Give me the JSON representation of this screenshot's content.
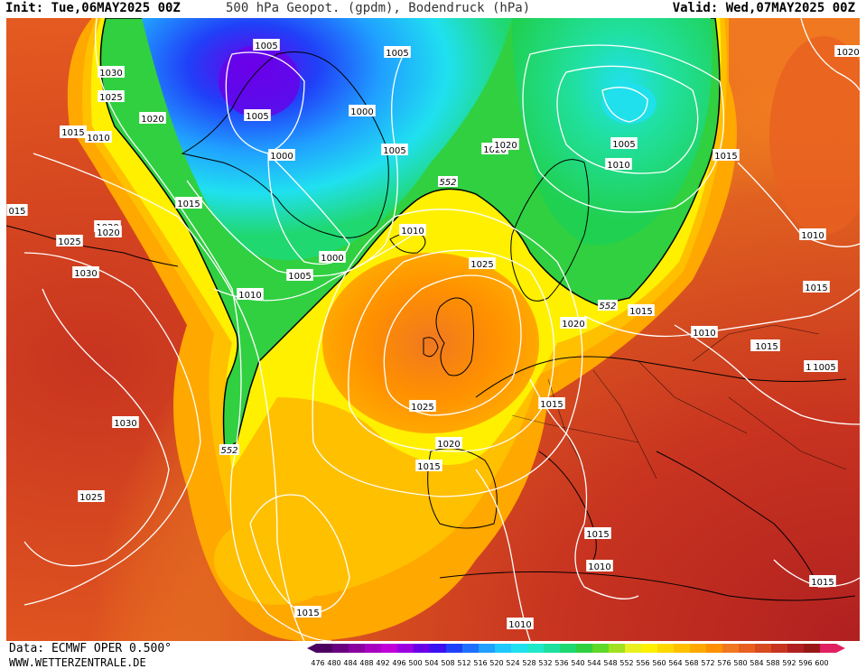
{
  "header": {
    "init": "Init: Tue,06MAY2025 00Z",
    "title": "500 hPa Geopot. (gpdm), Bodendruck (hPa)",
    "valid": "Valid: Wed,07MAY2025 00Z"
  },
  "footer": {
    "data_source": "Data: ECMWF OPER 0.500°",
    "website": "WWW.WETTERZENTRALE.DE"
  },
  "legend": {
    "unit": "gpdm",
    "ticks": [
      "476",
      "480",
      "484",
      "488",
      "492",
      "496",
      "500",
      "504",
      "508",
      "512",
      "516",
      "520",
      "524",
      "528",
      "532",
      "536",
      "540",
      "544",
      "548",
      "552",
      "556",
      "560",
      "564",
      "568",
      "572",
      "576",
      "580",
      "584",
      "588",
      "592",
      "596",
      "600"
    ],
    "colors": [
      "#4b0060",
      "#6a0080",
      "#8a00a0",
      "#a800c0",
      "#c000d8",
      "#9a00e0",
      "#6a00e8",
      "#3c10f0",
      "#2040f8",
      "#2070ff",
      "#20a0ff",
      "#20c8ff",
      "#20e0f0",
      "#20e8c8",
      "#20e0a0",
      "#20d870",
      "#30d040",
      "#60d828",
      "#a0e020",
      "#e8f020",
      "#fff000",
      "#ffd800",
      "#ffc000",
      "#ffa800",
      "#ff9000",
      "#f07820",
      "#e86020",
      "#d84a20",
      "#c83420",
      "#b02020",
      "#981818",
      "#e02060"
    ]
  },
  "isobar_labels": [
    "1005",
    "1005",
    "1005",
    "1000",
    "1000",
    "1005",
    "1000",
    "1005",
    "1010",
    "1020",
    "1020",
    "1000",
    "1015",
    "1020",
    "1030",
    "1025",
    "1020",
    "1015",
    "1010",
    "1015",
    "015",
    "1025",
    "1020",
    "1030",
    "1010",
    "1015",
    "1010",
    "1025",
    "1020",
    "1015",
    "1010",
    "1015",
    "1015",
    "1015",
    "1030",
    "1025",
    "1025",
    "1020",
    "1015",
    "1015",
    "1010",
    "1015",
    "1010",
    "1015",
    "1005",
    "1010",
    "1005",
    "1000",
    "1015",
    "1020"
  ],
  "contour_552_labels": [
    "552",
    "552",
    "552"
  ]
}
